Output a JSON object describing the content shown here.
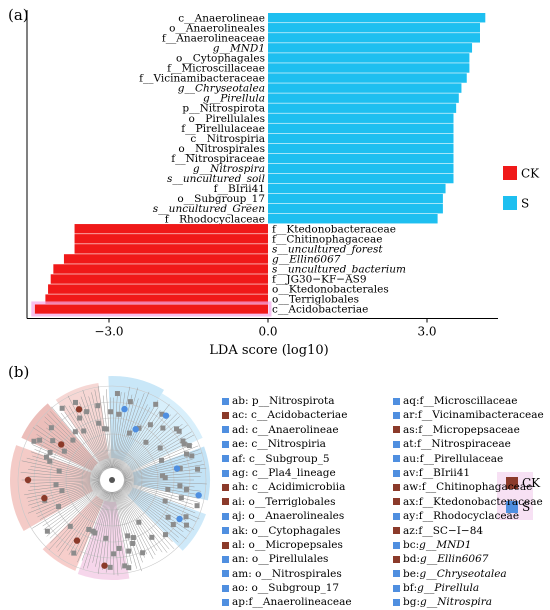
{
  "panel_a_label": "(a)",
  "panel_b_label": "(b)",
  "colors": {
    "CK": "#f01919",
    "S": "#1ebff0",
    "CK_marker": "#8b3a2a",
    "S_marker": "#4f8fe0"
  },
  "chart_data": {
    "type": "bar",
    "orientation": "horizontal",
    "xlabel": "LDA score (log10)",
    "xlim": [
      -4.6,
      4.6
    ],
    "xticks": [
      -3.0,
      0.0,
      3.0
    ],
    "xtick_labels": [
      "−3.0",
      "0.0",
      "3.0"
    ],
    "legend_position": "right",
    "legend": [
      {
        "name": "CK",
        "color": "#f01919"
      },
      {
        "name": "S",
        "color": "#1ebff0"
      }
    ],
    "bars": [
      {
        "label": "c__Anaerolineae",
        "value": 4.1,
        "group": "S",
        "italic": false
      },
      {
        "label": "o__Anaerolineales",
        "value": 4.0,
        "group": "S",
        "italic": false
      },
      {
        "label": "f__Anaerolineaceae",
        "value": 4.0,
        "group": "S",
        "italic": false
      },
      {
        "label": "g__MND1",
        "value": 3.85,
        "group": "S",
        "italic": true
      },
      {
        "label": "o__Cytophagales",
        "value": 3.8,
        "group": "S",
        "italic": false
      },
      {
        "label": "f__Microscillaceae",
        "value": 3.8,
        "group": "S",
        "italic": false
      },
      {
        "label": "f__Vicinamibacteraceae",
        "value": 3.75,
        "group": "S",
        "italic": false
      },
      {
        "label": "g__Chryseotalea",
        "value": 3.65,
        "group": "S",
        "italic": true
      },
      {
        "label": "g__Pirellula",
        "value": 3.6,
        "group": "S",
        "italic": true
      },
      {
        "label": "p__Nitrospirota",
        "value": 3.55,
        "group": "S",
        "italic": false
      },
      {
        "label": "o__Pirellulales",
        "value": 3.5,
        "group": "S",
        "italic": false
      },
      {
        "label": "f__Pirellulaceae",
        "value": 3.5,
        "group": "S",
        "italic": false
      },
      {
        "label": "c__Nitrospiria",
        "value": 3.5,
        "group": "S",
        "italic": false
      },
      {
        "label": "o__Nitrospirales",
        "value": 3.5,
        "group": "S",
        "italic": false
      },
      {
        "label": "f__Nitrospiraceae",
        "value": 3.5,
        "group": "S",
        "italic": false
      },
      {
        "label": "g__Nitrospira",
        "value": 3.5,
        "group": "S",
        "italic": true
      },
      {
        "label": "s__uncultured_soil",
        "value": 3.5,
        "group": "S",
        "italic": true
      },
      {
        "label": "f__BIrii41",
        "value": 3.35,
        "group": "S",
        "italic": false
      },
      {
        "label": "o__Subgroup_17",
        "value": 3.3,
        "group": "S",
        "italic": false
      },
      {
        "label": "s__uncultured_Green",
        "value": 3.3,
        "group": "S",
        "italic": true
      },
      {
        "label": "f__Rhodocyclaceae",
        "value": 3.2,
        "group": "S",
        "italic": false
      },
      {
        "label": "f__Ktedonobacteraceae",
        "value": -3.65,
        "group": "CK",
        "italic": false
      },
      {
        "label": "f__Chitinophagaceae",
        "value": -3.65,
        "group": "CK",
        "italic": false
      },
      {
        "label": "s__uncultured_forest",
        "value": -3.65,
        "group": "CK",
        "italic": true
      },
      {
        "label": "g__Ellin6067",
        "value": -3.85,
        "group": "CK",
        "italic": true
      },
      {
        "label": "s__uncultured_bacterium",
        "value": -4.05,
        "group": "CK",
        "italic": true
      },
      {
        "label": "f__JG30−KF−AS9",
        "value": -4.1,
        "group": "CK",
        "italic": false
      },
      {
        "label": "o__Ktedonobacterales",
        "value": -4.15,
        "group": "CK",
        "italic": false
      },
      {
        "label": "o__Terriglobales",
        "value": -4.2,
        "group": "CK",
        "italic": false
      },
      {
        "label": "c__Acidobacteriae",
        "value": -4.4,
        "group": "CK",
        "italic": false
      }
    ]
  },
  "cladogram": {
    "legend_col1": [
      {
        "text": "ab: p__Nitrospirota",
        "group": "S",
        "italic": false
      },
      {
        "text": "ac: c__Acidobacteriae",
        "group": "CK",
        "italic": false
      },
      {
        "text": "ad: c__Anaerolineae",
        "group": "S",
        "italic": false
      },
      {
        "text": "ae: c__Nitrospiria",
        "group": "S",
        "italic": false
      },
      {
        "text": "af: c__Subgroup_5",
        "group": "S",
        "italic": false
      },
      {
        "text": "ag: c__Pla4_lineage",
        "group": "S",
        "italic": false
      },
      {
        "text": "ah: c__Acidimicrobiia",
        "group": "CK",
        "italic": false
      },
      {
        "text": "ai: o__Terriglobales",
        "group": "CK",
        "italic": false
      },
      {
        "text": "aj: o__Anaerolineales",
        "group": "S",
        "italic": false
      },
      {
        "text": "ak: o__Cytophagales",
        "group": "S",
        "italic": false
      },
      {
        "text": "al: o__Micropepsales",
        "group": "CK",
        "italic": false
      },
      {
        "text": "an: o__Pirellulales",
        "group": "S",
        "italic": false
      },
      {
        "text": "am: o__Nitrospirales",
        "group": "S",
        "italic": false
      },
      {
        "text": "ao: o__Subgroup_17",
        "group": "S",
        "italic": false
      },
      {
        "text": "ap:f__Anaerolineaceae",
        "group": "S",
        "italic": false
      }
    ],
    "legend_col2": [
      {
        "prefix": "aq: ",
        "text": "f__Microscillaceae",
        "group": "S",
        "italic": false
      },
      {
        "prefix": "ar: ",
        "text": "f__Vicinamibacteraceae",
        "group": "S",
        "italic": false
      },
      {
        "prefix": "as: ",
        "text": "f__Micropepsaceae",
        "group": "CK",
        "italic": false
      },
      {
        "prefix": "at: ",
        "text": "f__Nitrospiraceae",
        "group": "S",
        "italic": false
      },
      {
        "prefix": "au: ",
        "text": "f__Pirellulaceae",
        "group": "S",
        "italic": false
      },
      {
        "prefix": "av: ",
        "text": "f__BIrii41",
        "group": "S",
        "italic": false
      },
      {
        "prefix": "aw: ",
        "text": "f__Chitinophagaceae",
        "group": "CK",
        "italic": false
      },
      {
        "prefix": "ax: ",
        "text": "f__Ktedonobacteraceae",
        "group": "CK",
        "italic": false
      },
      {
        "prefix": "ay: ",
        "text": "f__Rhodocyclaceae",
        "group": "S",
        "italic": false
      },
      {
        "prefix": "az: ",
        "text": "f__SC−I−84",
        "group": "CK",
        "italic": false
      },
      {
        "prefix": "bc: ",
        "text": "g__MND1",
        "group": "S",
        "italic": true
      },
      {
        "prefix": "bd: ",
        "text": "g__Ellin6067",
        "group": "CK",
        "italic": true
      },
      {
        "prefix": "be: ",
        "text": "g__Chryseotalea",
        "group": "S",
        "italic": true
      },
      {
        "prefix": "bf: ",
        "text": "g__Pirellula",
        "group": "S",
        "italic": true
      },
      {
        "prefix": "bg: ",
        "text": "g__Nitrospira",
        "group": "S",
        "italic": true
      }
    ],
    "legend": [
      {
        "name": "CK",
        "color": "#8b3a2a"
      },
      {
        "name": "S",
        "color": "#4f8fe0"
      }
    ]
  }
}
